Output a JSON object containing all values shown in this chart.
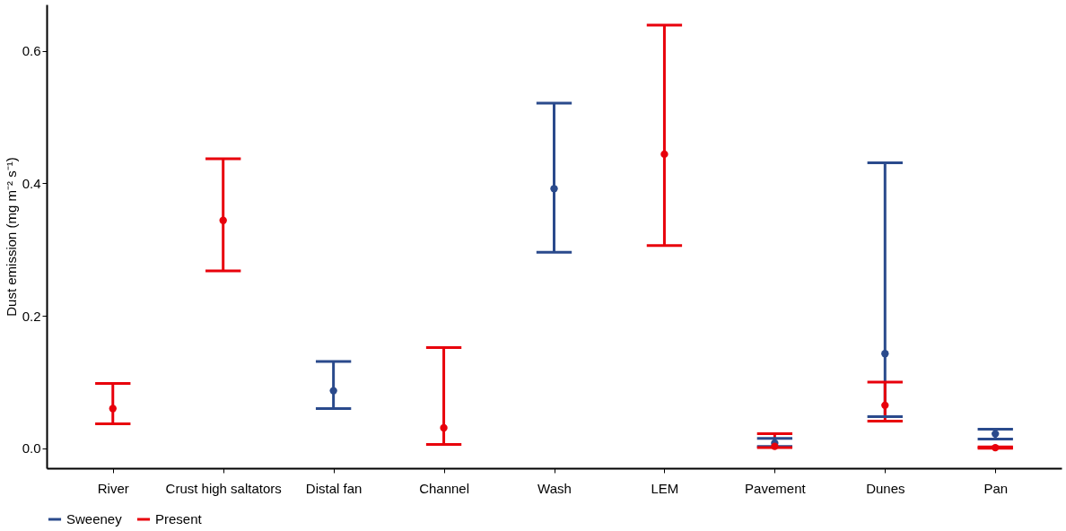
{
  "chart_data": {
    "type": "scatter",
    "ylabel": "Dust emission (mg m⁻² s⁻¹)",
    "categories": [
      "River",
      "Crust high saltators",
      "Distal fan",
      "Channel",
      "Wash",
      "LEM",
      "Pavement",
      "Dunes",
      "Pan"
    ],
    "series": [
      {
        "name": "Sweeney",
        "color": "#2a4a8c",
        "values": [
          null,
          null,
          0.087,
          null,
          0.392,
          null,
          0.008,
          0.143,
          0.022
        ],
        "errors": [
          null,
          null,
          [
            0.06,
            0.131
          ],
          null,
          [
            0.296,
            0.521
          ],
          null,
          [
            0.003,
            0.015
          ],
          [
            0.048,
            0.431
          ],
          [
            0.014,
            0.029
          ]
        ]
      },
      {
        "name": "Present",
        "color": "#e8000b",
        "values": [
          0.06,
          0.344,
          null,
          0.031,
          null,
          0.444,
          0.003,
          0.065,
          0.001
        ],
        "errors": [
          [
            0.037,
            0.098
          ],
          [
            0.268,
            0.437
          ],
          null,
          [
            0.006,
            0.152
          ],
          null,
          [
            0.306,
            0.639
          ],
          [
            0.001,
            0.022
          ],
          [
            0.041,
            0.1
          ],
          [
            0.0,
            0.002
          ]
        ]
      }
    ],
    "ylim": [
      -0.03,
      0.67
    ],
    "yticks": [
      {
        "value": 0,
        "label": "0.0"
      },
      {
        "value": 0.2,
        "label": "0.2"
      },
      {
        "value": 0.4,
        "label": "0.4"
      },
      {
        "value": 0.6,
        "label": "0.6"
      }
    ],
    "legend": "bottom",
    "grid": false,
    "marker": "circle"
  }
}
